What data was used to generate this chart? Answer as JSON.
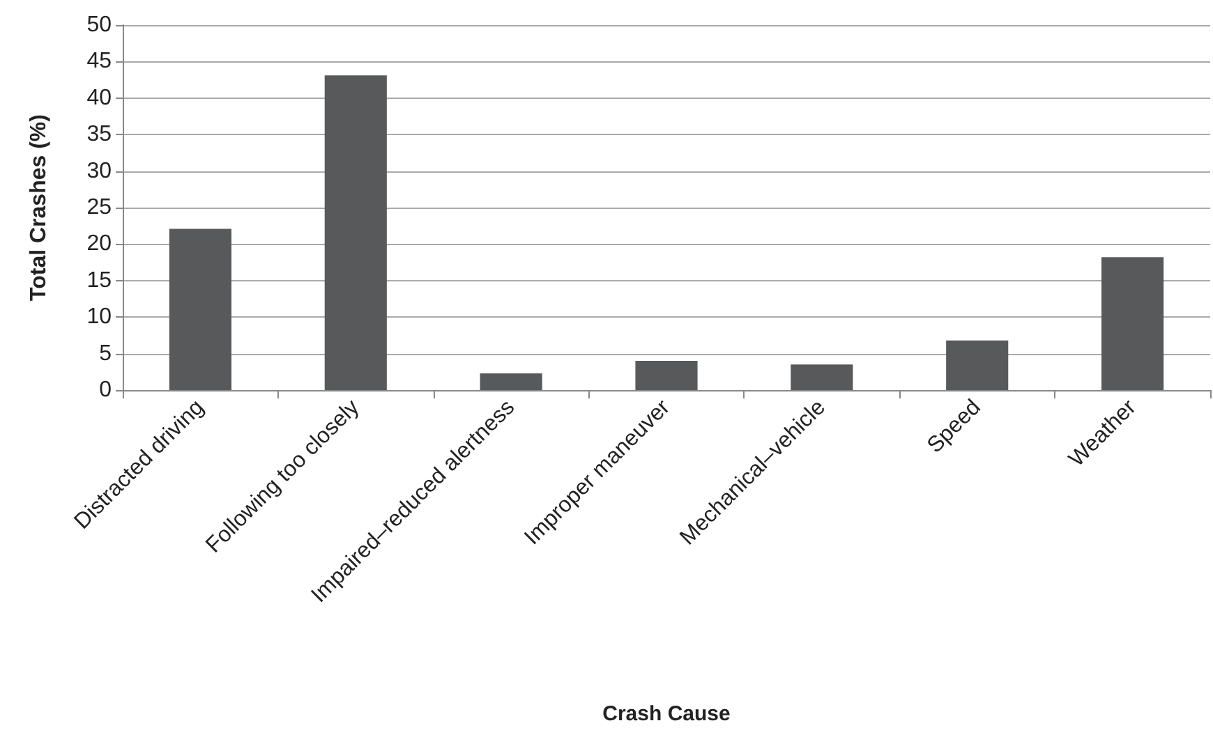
{
  "chart_data": {
    "type": "bar",
    "xlabel": "Crash Cause",
    "ylabel": "Total Crashes (%)",
    "categories": [
      "Distracted driving",
      "Following too closely",
      "Impaired–reduced alertness",
      "Improper maneuver",
      "Mechanical–vehicle",
      "Speed",
      "Weather"
    ],
    "values": [
      22.1,
      43.1,
      2.3,
      4,
      3.5,
      6.8,
      18.2
    ],
    "color": "#58595b",
    "ylim": [
      0,
      50
    ],
    "yticks": [
      0,
      5,
      10,
      15,
      20,
      25,
      30,
      35,
      40,
      45,
      50
    ],
    "grid": "y"
  }
}
